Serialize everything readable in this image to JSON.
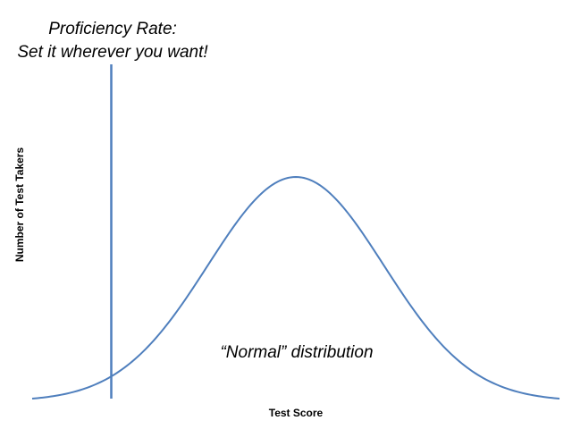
{
  "chart_data": {
    "type": "line",
    "title_lines": [
      "Proficiency Rate:",
      "Set it wherever you want!"
    ],
    "xlabel": "Test Score",
    "ylabel": "Number of Test Takers",
    "annotation": "“Normal” distribution",
    "grid": false,
    "legend": "none",
    "series": [
      {
        "curve": "normal",
        "mean": 0,
        "sd": 1,
        "xrange": [
          -3,
          3
        ],
        "color": "#4f7fbd"
      }
    ],
    "threshold_x": -2.1,
    "threshold_color": "#4f7fbd"
  }
}
